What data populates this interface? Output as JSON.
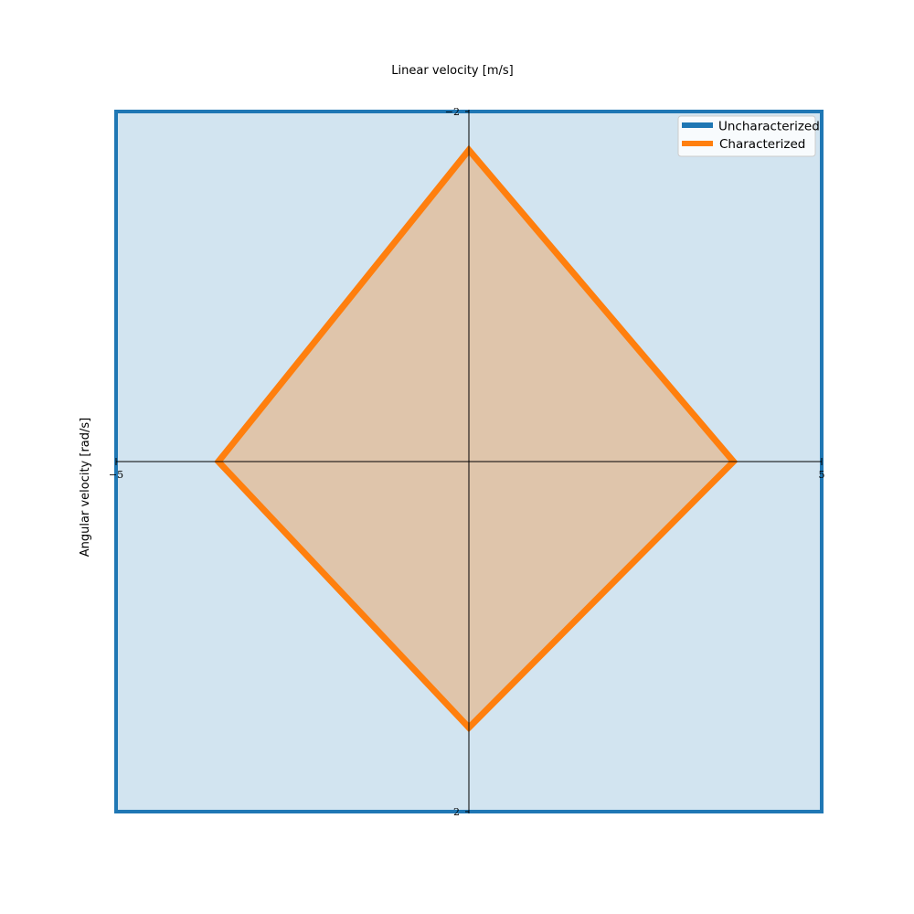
{
  "chart_data": {
    "type": "area",
    "title": "",
    "xlabel": "Linear velocity [m/s]",
    "ylabel": "Angular velocity [rad/s]",
    "xlim": [
      -5,
      5
    ],
    "ylim": [
      -2,
      2
    ],
    "x_ticks": [
      -5,
      5
    ],
    "y_ticks": [
      -2,
      2
    ],
    "x_tick_labels": [
      "−5",
      "5"
    ],
    "y_tick_labels": [
      "2",
      "−2"
    ],
    "grid": false,
    "legend_position": "top-right",
    "series": [
      {
        "name": "Uncharacterized",
        "color": "#1f77b4",
        "points": [
          [
            -5,
            2
          ],
          [
            5,
            2
          ],
          [
            5,
            -2
          ],
          [
            -5,
            -2
          ]
        ]
      },
      {
        "name": "Characterized",
        "color": "#ff7f0e",
        "points": [
          [
            0,
            1.78
          ],
          [
            3.75,
            0
          ],
          [
            0,
            -1.52
          ],
          [
            -3.55,
            0
          ]
        ]
      }
    ]
  }
}
